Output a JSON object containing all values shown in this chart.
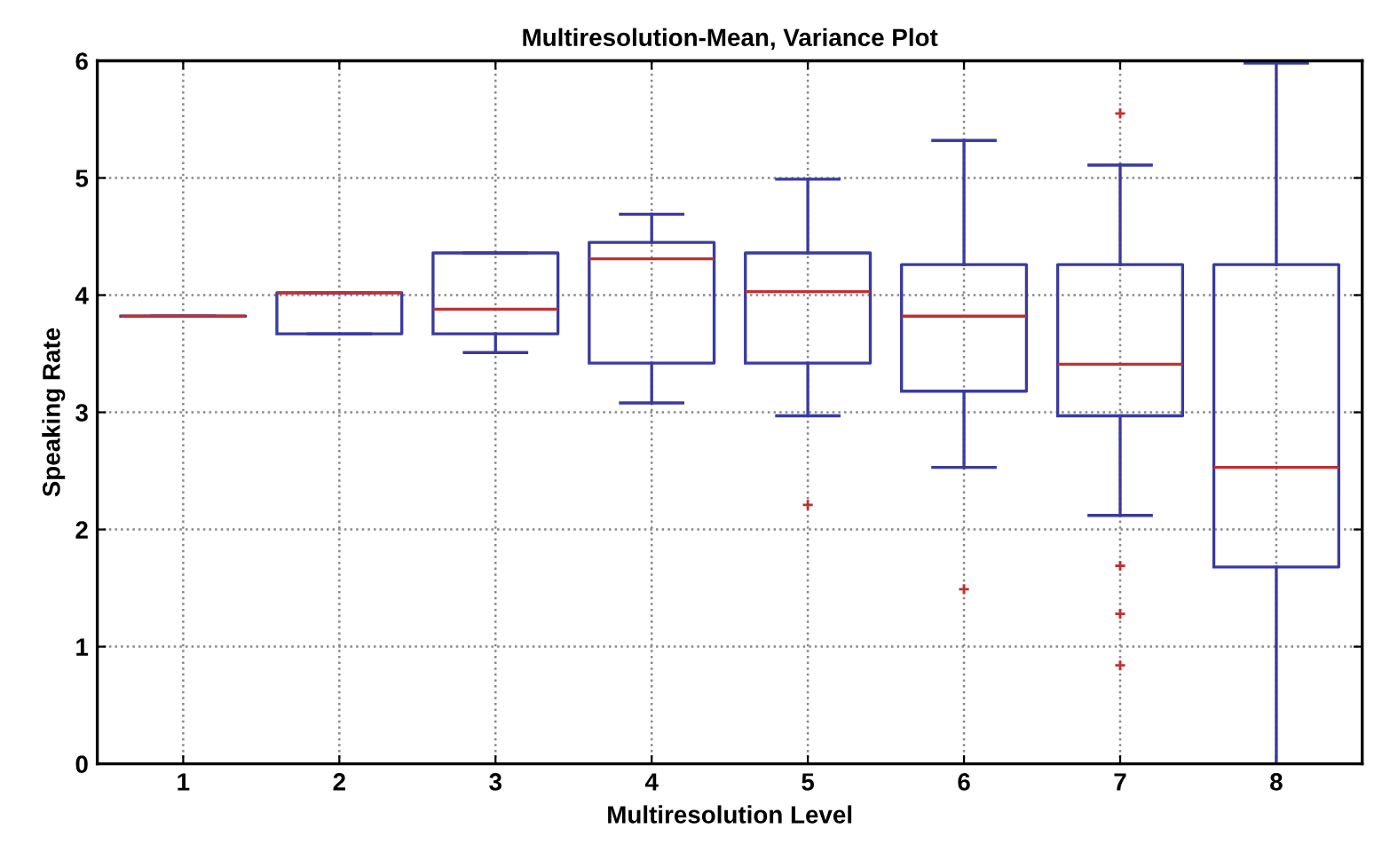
{
  "chart_data": {
    "type": "box",
    "title": "Multiresolution-Mean, Variance Plot",
    "xlabel": "Multiresolution Level",
    "ylabel": "Speaking Rate",
    "categories": [
      "1",
      "2",
      "3",
      "4",
      "5",
      "6",
      "7",
      "8"
    ],
    "boxes": [
      {
        "low": 3.82,
        "q1": 3.82,
        "median": 3.82,
        "q3": 3.82,
        "high": 3.82
      },
      {
        "low": 3.67,
        "q1": 3.67,
        "median": 4.02,
        "q3": 4.02,
        "high": 4.02
      },
      {
        "low": 3.51,
        "q1": 3.67,
        "median": 3.88,
        "q3": 4.36,
        "high": 4.36
      },
      {
        "low": 3.08,
        "q1": 3.42,
        "median": 4.31,
        "q3": 4.45,
        "high": 4.69
      },
      {
        "low": 2.97,
        "q1": 3.42,
        "median": 4.03,
        "q3": 4.36,
        "high": 4.99,
        "outliers": [
          2.21
        ]
      },
      {
        "low": 2.53,
        "q1": 3.18,
        "median": 3.82,
        "q3": 4.26,
        "high": 5.32,
        "outliers": [
          1.49
        ]
      },
      {
        "low": 2.12,
        "q1": 2.97,
        "median": 3.41,
        "q3": 4.26,
        "high": 5.11,
        "outliers": [
          5.55,
          1.69,
          1.28,
          0.84
        ]
      },
      {
        "low": 0,
        "q1": 1.68,
        "median": 2.53,
        "q3": 4.26,
        "high": 5.98
      }
    ],
    "color": "#3a3aa0",
    "ylim": [
      0,
      6
    ],
    "yticks": [
      0,
      1,
      2,
      3,
      4,
      5,
      6
    ],
    "grid": true
  }
}
